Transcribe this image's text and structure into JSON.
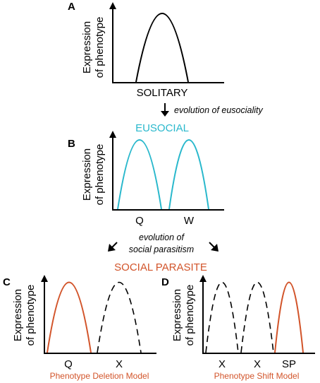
{
  "panels": {
    "a": {
      "letter": "A",
      "ylabel_1": "Expression",
      "ylabel_2": "of phenotype",
      "category": "SOLITARY"
    },
    "b": {
      "letter": "B",
      "title": "EUSOCIAL",
      "ylabel_1": "Expression",
      "ylabel_2": "of phenotype",
      "categories": [
        "Q",
        "W"
      ]
    },
    "c": {
      "letter": "C",
      "ylabel_1": "Expression",
      "ylabel_2": "of phenotype",
      "categories": [
        "Q",
        "X"
      ],
      "model": "Phenotype Deletion Model"
    },
    "d": {
      "letter": "D",
      "ylabel_1": "Expression",
      "ylabel_2": "of phenotype",
      "categories": [
        "X",
        "X",
        "SP"
      ],
      "model": "Phenotype Shift Model"
    }
  },
  "transitions": {
    "eusociality": "evolution of eusociality",
    "parasitism_1": "evolution of",
    "parasitism_2": "social parasitism",
    "parasite_title": "SOCIAL PARASITE"
  },
  "colors": {
    "solitary": "#000000",
    "eusocial": "#29b8cc",
    "parasite": "#d2542a",
    "lost": "#000000"
  }
}
